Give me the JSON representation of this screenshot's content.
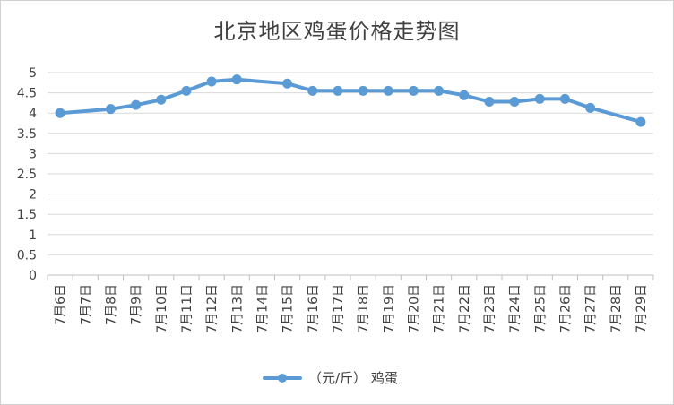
{
  "chart_data": {
    "type": "line",
    "title": "北京地区鸡蛋价格走势图",
    "categories": [
      "7月6日",
      "7月7日",
      "7月8日",
      "7月9日",
      "7月10日",
      "7月11日",
      "7月12日",
      "7月13日",
      "7月14日",
      "7月15日",
      "7月16日",
      "7月17日",
      "7月18日",
      "7月19日",
      "7月20日",
      "7月21日",
      "7月22日",
      "7月23日",
      "7月24日",
      "7月25日",
      "7月26日",
      "7月27日",
      "7月28日",
      "7月29日"
    ],
    "series": [
      {
        "name": "（元/斤） 鸡蛋",
        "color": "#5b9bd5",
        "values": [
          4.0,
          null,
          4.1,
          4.2,
          4.33,
          4.55,
          4.78,
          4.83,
          null,
          4.73,
          4.55,
          4.55,
          4.55,
          4.55,
          4.55,
          4.55,
          4.44,
          4.28,
          4.28,
          4.35,
          4.35,
          4.13,
          null,
          3.78
        ]
      }
    ],
    "ylim": [
      0,
      5
    ],
    "yticks": [
      "0",
      "0.5",
      "1",
      "1.5",
      "2",
      "2.5",
      "3",
      "3.5",
      "4",
      "4.5",
      "5"
    ],
    "grid": true,
    "legend_position": "bottom"
  }
}
